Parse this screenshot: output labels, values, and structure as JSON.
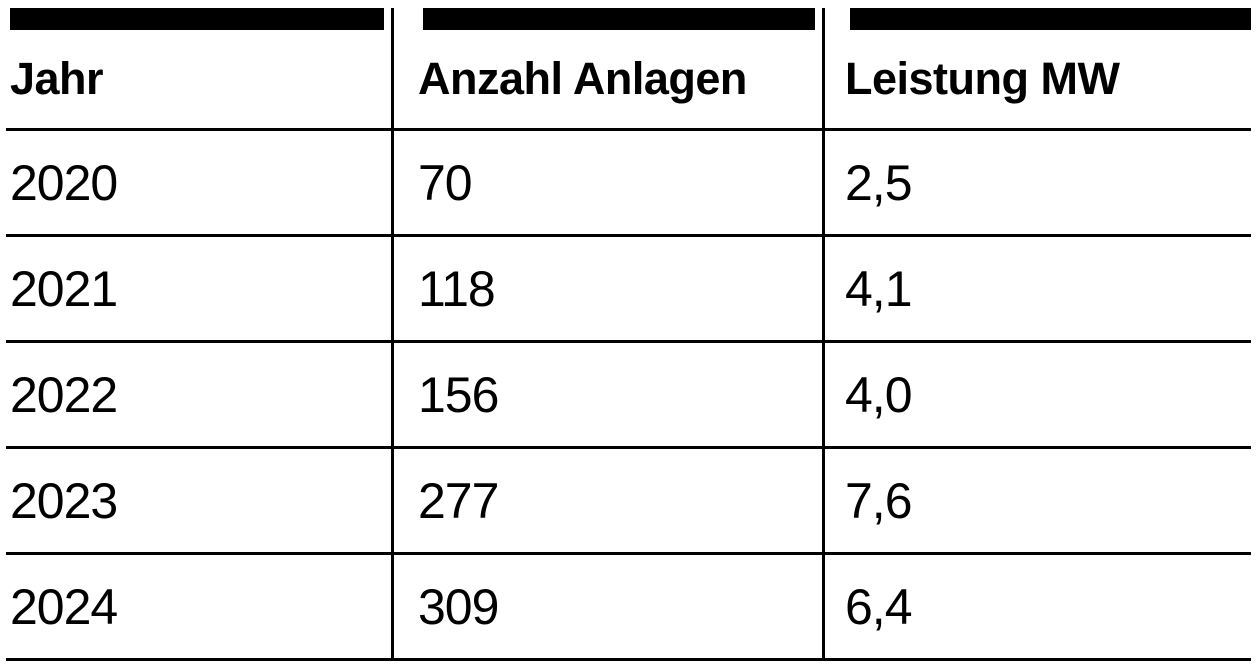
{
  "table": {
    "columns": [
      {
        "label": "Jahr"
      },
      {
        "label": "Anzahl Anlagen"
      },
      {
        "label": "Leistung MW"
      }
    ],
    "rows": [
      [
        "2020",
        "70",
        "2,5"
      ],
      [
        "2021",
        "118",
        "4,1"
      ],
      [
        "2022",
        "156",
        "4,0"
      ],
      [
        "2023",
        "277",
        "7,6"
      ],
      [
        "2024",
        "309",
        "6,4"
      ]
    ]
  },
  "colors": {
    "text": "#000000",
    "background": "#ffffff",
    "rule": "#000000",
    "header_bar": "#000000"
  },
  "chart_data": {
    "type": "table",
    "columns": [
      "Jahr",
      "Anzahl Anlagen",
      "Leistung MW"
    ],
    "rows": [
      [
        "2020",
        "70",
        "2,5"
      ],
      [
        "2021",
        "118",
        "4,1"
      ],
      [
        "2022",
        "156",
        "4,0"
      ],
      [
        "2023",
        "277",
        "7,6"
      ],
      [
        "2024",
        "309",
        "6,4"
      ]
    ],
    "values_numeric": {
      "Jahr": [
        2020,
        2021,
        2022,
        2023,
        2024
      ],
      "Anzahl Anlagen": [
        70,
        118,
        156,
        277,
        309
      ],
      "Leistung MW": [
        2.5,
        4.1,
        4.0,
        7.6,
        6.4
      ]
    }
  }
}
